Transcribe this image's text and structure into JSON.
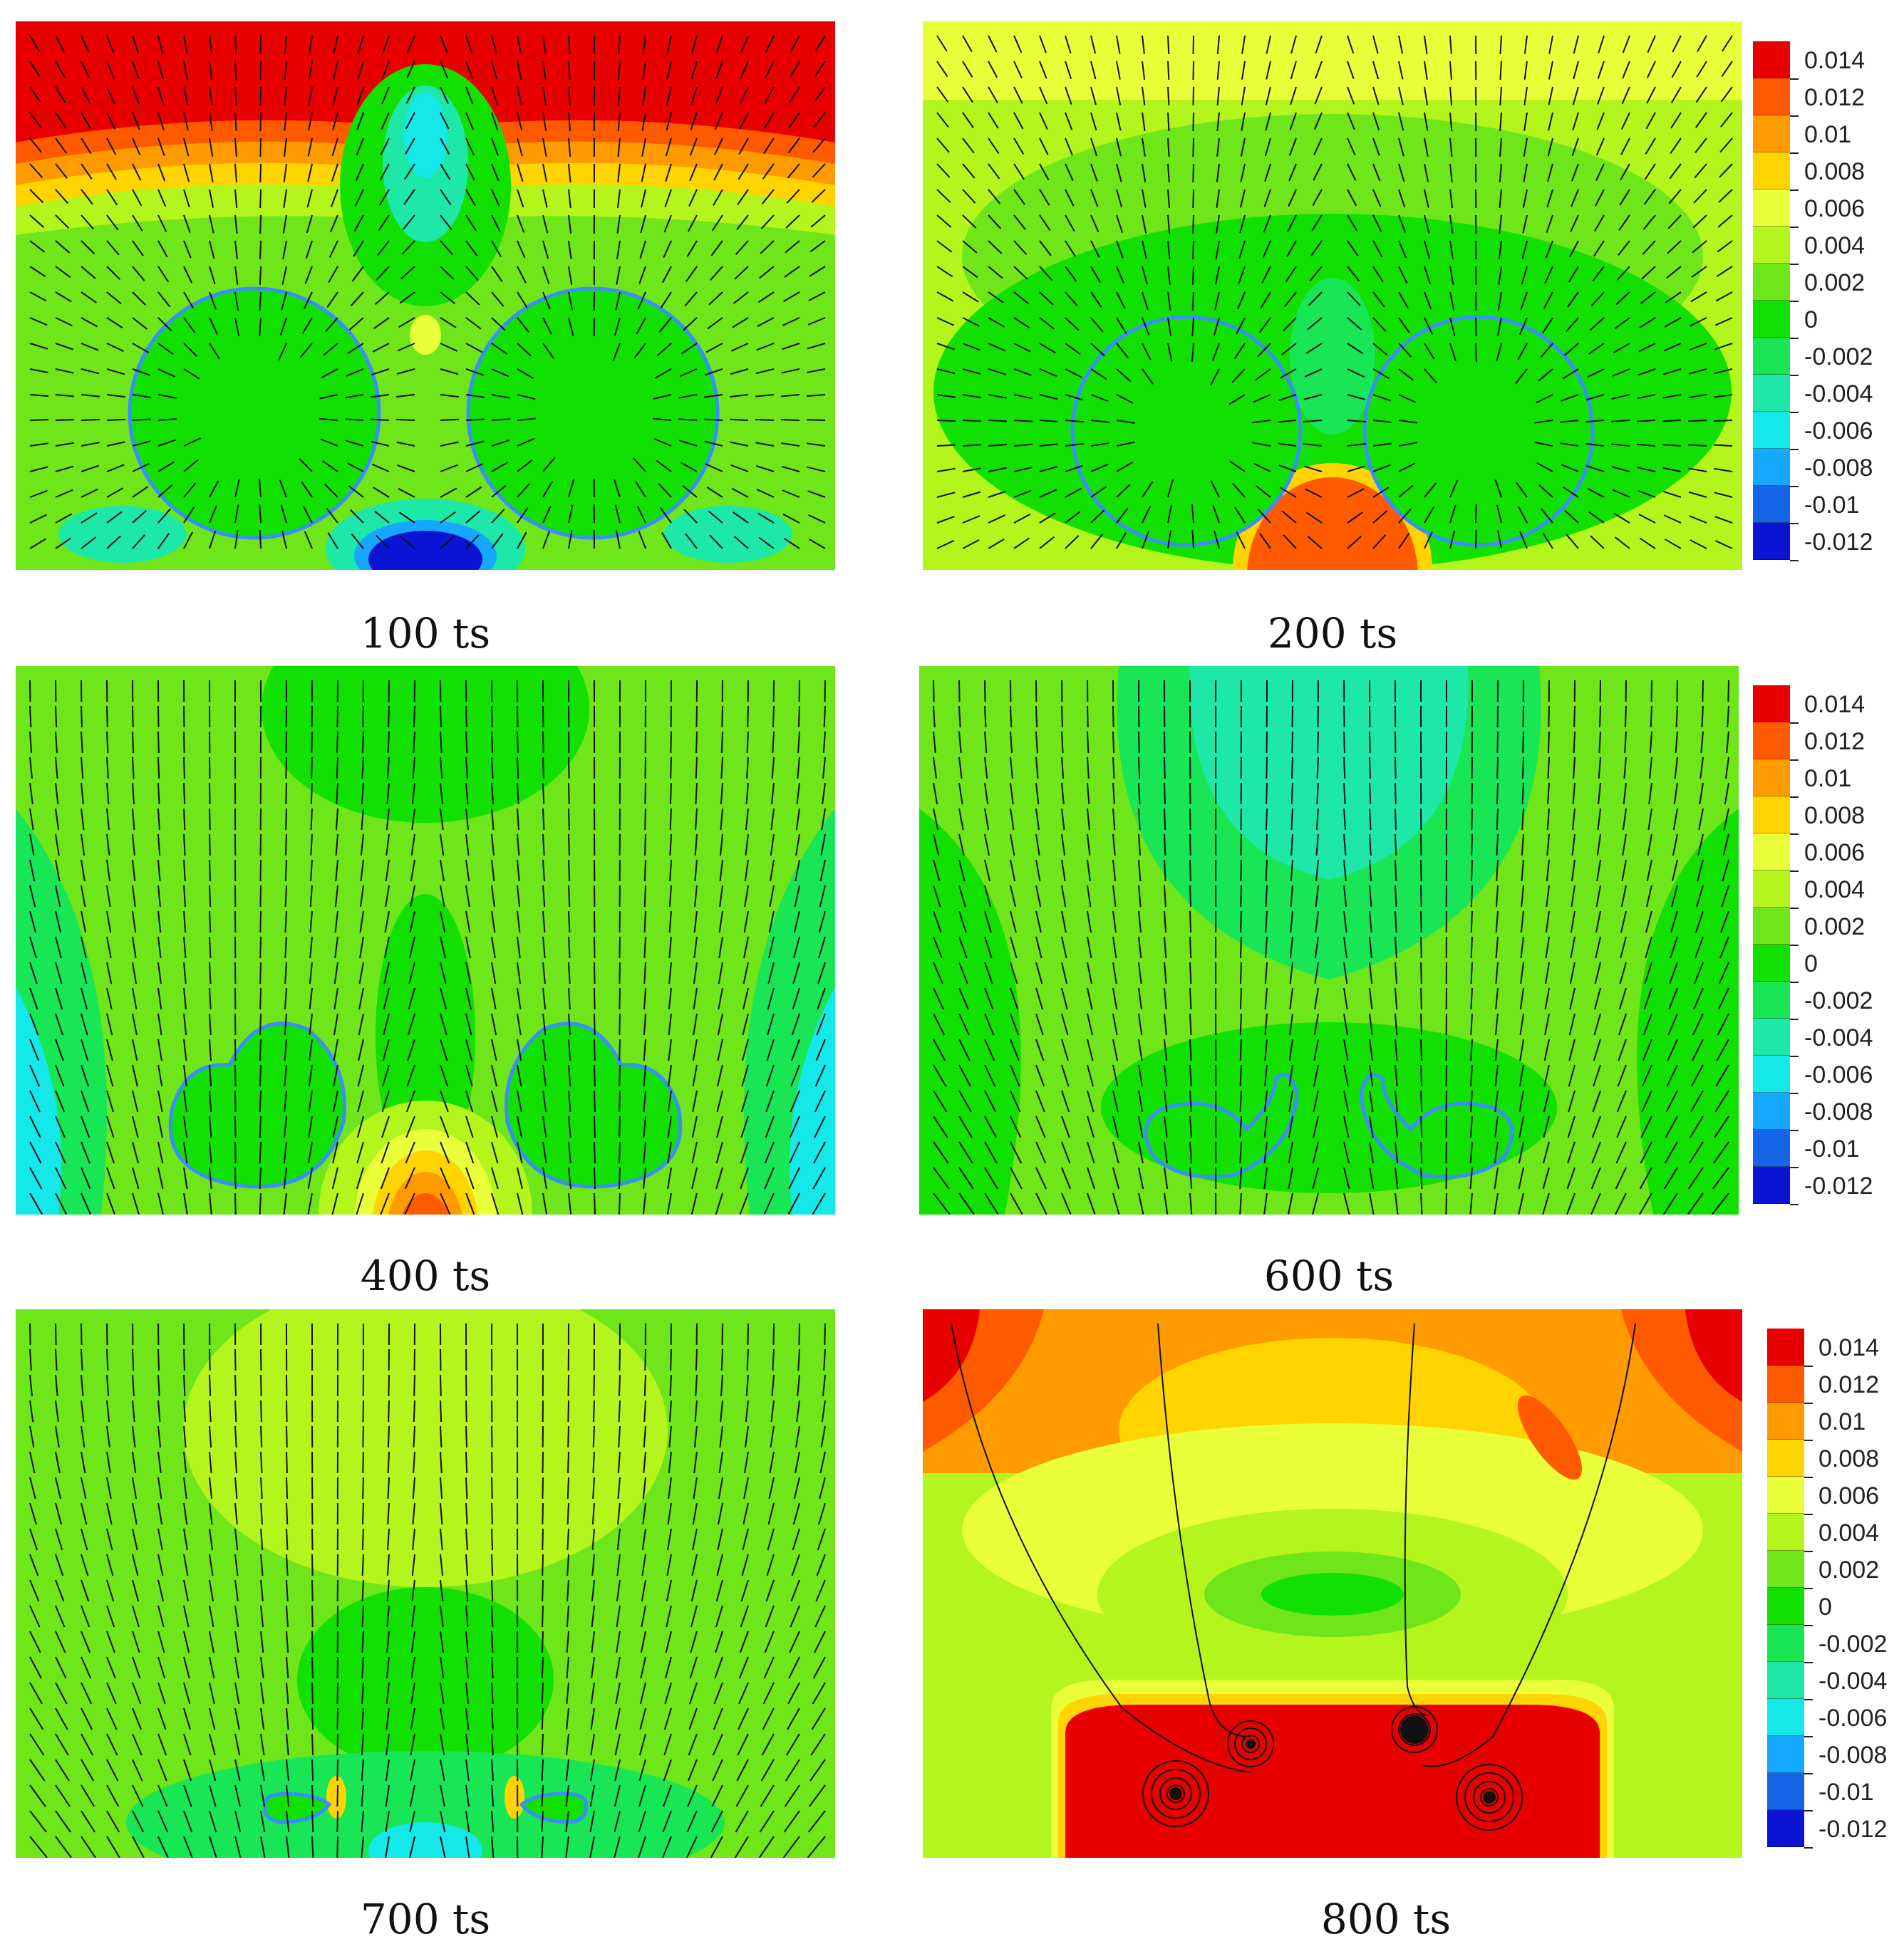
{
  "panels": [
    {
      "id": "p100",
      "caption": "100 ts"
    },
    {
      "id": "p200",
      "caption": "200 ts"
    },
    {
      "id": "p400",
      "caption": "400 ts"
    },
    {
      "id": "p600",
      "caption": "600 ts"
    },
    {
      "id": "p700",
      "caption": "700 ts"
    },
    {
      "id": "p800",
      "caption": "800 ts"
    }
  ],
  "colorbar": {
    "labels": [
      "0.014",
      "0.012",
      "0.01",
      "0.008",
      "0.006",
      "0.004",
      "0.002",
      "0",
      "-0.002",
      "-0.004",
      "-0.006",
      "-0.008",
      "-0.01",
      "-0.012"
    ],
    "colors": [
      "#e80000",
      "#ff5a00",
      "#ff9a00",
      "#ffd400",
      "#e8ff3a",
      "#b4f51e",
      "#6ee61a",
      "#12e000",
      "#18e655",
      "#1ee8a8",
      "#14e8e8",
      "#16a8ff",
      "#1466e6",
      "#0a14d2"
    ]
  },
  "palette": {
    "green": "#12e000",
    "lime": "#6ee61a",
    "yellowgreen": "#b4f51e",
    "yellow": "#e8ff3a",
    "gold": "#ffd400",
    "orange": "#ff9a00",
    "redorange": "#ff5a00",
    "red": "#e80000",
    "seagreen": "#18e655",
    "aqua": "#1ee8a8",
    "cyan": "#14e8e8",
    "blue": "#1466e6",
    "deepblue": "#0a14d2",
    "interface": "#3a8cff",
    "vector": "#111111"
  }
}
